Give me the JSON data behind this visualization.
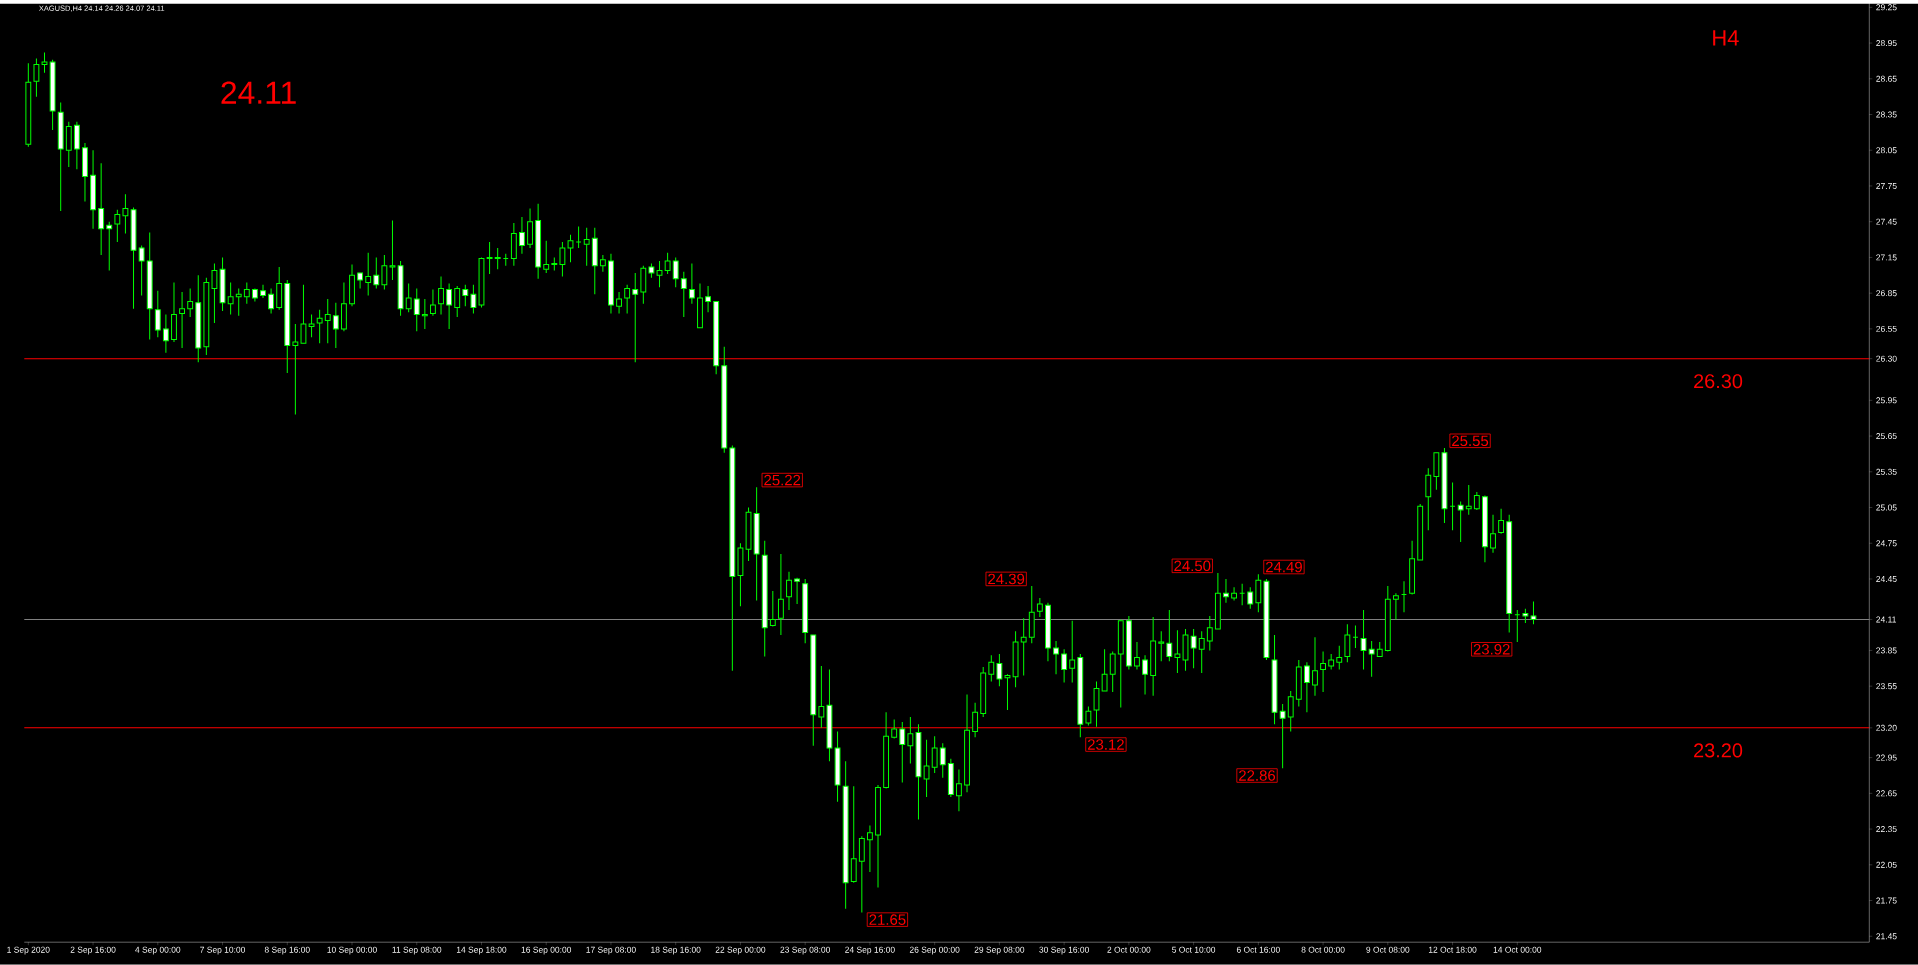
{
  "chart_data": {
    "type": "candlestick",
    "title": "XAGUSD,H4  24.14 24.26 24.07 24.11",
    "color": "#00ff00",
    "categories": [
      "1 Sep 2020",
      null,
      null,
      null,
      null,
      null,
      null,
      null,
      "2 Sep 16:00",
      null,
      null,
      null,
      null,
      null,
      null,
      null,
      "4 Sep 00:00",
      null,
      null,
      null,
      null,
      null,
      null,
      null,
      "7 Sep 10:00",
      null,
      null,
      null,
      null,
      null,
      null,
      null,
      "8 Sep 16:00",
      null,
      null,
      null,
      null,
      null,
      null,
      null,
      "10 Sep 00:00",
      null,
      null,
      null,
      null,
      null,
      null,
      null,
      "11 Sep 08:00",
      null,
      null,
      null,
      null,
      null,
      null,
      null,
      "14 Sep 18:00",
      null,
      null,
      null,
      null,
      null,
      null,
      null,
      "16 Sep 00:00",
      null,
      null,
      null,
      null,
      null,
      null,
      null,
      "17 Sep 08:00",
      null,
      null,
      null,
      null,
      null,
      null,
      null,
      "18 Sep 16:00",
      null,
      null,
      null,
      null,
      null,
      null,
      null,
      "22 Sep 00:00",
      null,
      null,
      null,
      null,
      null,
      null,
      null,
      "23 Sep 08:00",
      null,
      null,
      null,
      null,
      null,
      null,
      null,
      "24 Sep 16:00",
      null,
      null,
      null,
      null,
      null,
      null,
      null,
      "26 Sep 00:00",
      null,
      null,
      null,
      null,
      null,
      null,
      null,
      "29 Sep 08:00",
      null,
      null,
      null,
      null,
      null,
      null,
      null,
      "30 Sep 16:00",
      null,
      null,
      null,
      null,
      null,
      null,
      null,
      "2 Oct 00:00",
      null,
      null,
      null,
      null,
      null,
      null,
      null,
      "5 Oct 10:00",
      null,
      null,
      null,
      null,
      null,
      null,
      null,
      "6 Oct 16:00",
      null,
      null,
      null,
      null,
      null,
      null,
      null,
      "8 Oct 00:00",
      null,
      null,
      null,
      null,
      null,
      null,
      null,
      "9 Oct 08:00",
      null,
      null,
      null,
      null,
      null,
      null,
      null,
      "12 Oct 18:00",
      null,
      null,
      null,
      null,
      null,
      null,
      null,
      "14 Oct 00:00",
      null,
      null,
      null,
      null,
      null,
      null,
      null,
      null,
      null,
      null,
      null,
      null,
      null,
      null,
      null,
      null,
      null,
      null,
      null,
      null,
      null,
      null,
      null,
      null,
      null,
      null,
      null,
      null,
      null,
      null,
      null,
      null,
      null,
      null,
      null,
      null,
      null,
      null,
      null,
      null,
      null,
      null,
      null
    ],
    "ohlc": [
      [
        28.1,
        28.78,
        28.08,
        28.62
      ],
      [
        28.63,
        28.82,
        28.5,
        28.77
      ],
      [
        28.77,
        28.87,
        28.7,
        28.79
      ],
      [
        28.79,
        28.81,
        28.22,
        28.38
      ],
      [
        28.37,
        28.45,
        27.54,
        28.06
      ],
      [
        28.05,
        28.29,
        27.91,
        28.25
      ],
      [
        28.26,
        28.29,
        27.89,
        28.06
      ],
      [
        28.07,
        28.11,
        27.62,
        27.83
      ],
      [
        27.84,
        28.05,
        27.39,
        27.55
      ],
      [
        27.56,
        27.94,
        27.17,
        27.39
      ],
      [
        27.42,
        27.45,
        27.04,
        27.39
      ],
      [
        27.43,
        27.55,
        27.28,
        27.51
      ],
      [
        27.5,
        27.68,
        27.35,
        27.56
      ],
      [
        27.55,
        27.57,
        26.72,
        27.21
      ],
      [
        27.23,
        27.25,
        26.83,
        27.12
      ],
      [
        27.12,
        27.36,
        26.46,
        26.72
      ],
      [
        26.71,
        26.87,
        26.48,
        26.54
      ],
      [
        26.55,
        26.67,
        26.35,
        26.45
      ],
      [
        26.46,
        26.94,
        26.44,
        26.67
      ],
      [
        26.68,
        26.86,
        26.39,
        26.72
      ],
      [
        26.72,
        26.89,
        26.65,
        26.78
      ],
      [
        26.77,
        27.0,
        26.27,
        26.39
      ],
      [
        26.4,
        26.98,
        26.33,
        26.94
      ],
      [
        26.89,
        27.1,
        26.6,
        27.04
      ],
      [
        27.05,
        27.15,
        26.7,
        26.77
      ],
      [
        26.76,
        26.94,
        26.67,
        26.82
      ],
      [
        26.82,
        26.89,
        26.66,
        26.84
      ],
      [
        26.82,
        26.94,
        26.76,
        26.88
      ],
      [
        26.88,
        26.89,
        26.78,
        26.81
      ],
      [
        26.87,
        26.92,
        26.81,
        26.83
      ],
      [
        26.84,
        26.89,
        26.68,
        26.72
      ],
      [
        26.73,
        27.07,
        26.71,
        26.93
      ],
      [
        26.93,
        26.96,
        26.18,
        26.41
      ],
      [
        26.41,
        26.59,
        25.83,
        26.44
      ],
      [
        26.43,
        26.92,
        26.43,
        26.59
      ],
      [
        26.57,
        26.67,
        26.48,
        26.59
      ],
      [
        26.6,
        26.71,
        26.43,
        26.64
      ],
      [
        26.62,
        26.8,
        26.43,
        26.67
      ],
      [
        26.66,
        26.77,
        26.39,
        26.55
      ],
      [
        26.55,
        26.94,
        26.53,
        26.76
      ],
      [
        26.76,
        27.09,
        26.74,
        27.0
      ],
      [
        27.02,
        27.02,
        26.89,
        26.96
      ],
      [
        26.94,
        27.19,
        26.83,
        26.99
      ],
      [
        27.0,
        27.15,
        26.89,
        26.92
      ],
      [
        26.92,
        27.17,
        26.88,
        27.08
      ],
      [
        27.07,
        27.46,
        26.96,
        27.08
      ],
      [
        27.08,
        27.12,
        26.66,
        26.72
      ],
      [
        26.72,
        26.93,
        26.69,
        26.81
      ],
      [
        26.8,
        26.89,
        26.53,
        26.67
      ],
      [
        26.66,
        26.8,
        26.55,
        26.67
      ],
      [
        26.68,
        26.88,
        26.66,
        26.75
      ],
      [
        26.76,
        26.99,
        26.67,
        26.89
      ],
      [
        26.88,
        26.93,
        26.55,
        26.75
      ],
      [
        26.73,
        26.91,
        26.65,
        26.89
      ],
      [
        26.88,
        26.92,
        26.74,
        26.83
      ],
      [
        26.84,
        26.92,
        26.68,
        26.73
      ],
      [
        26.75,
        27.15,
        26.73,
        27.14
      ],
      [
        27.14,
        27.28,
        27.01,
        27.15
      ],
      [
        27.15,
        27.23,
        27.05,
        27.14
      ],
      [
        27.14,
        27.18,
        27.08,
        27.14
      ],
      [
        27.14,
        27.44,
        27.08,
        27.35
      ],
      [
        27.36,
        27.49,
        27.18,
        27.25
      ],
      [
        27.26,
        27.56,
        27.23,
        27.45
      ],
      [
        27.46,
        27.6,
        26.97,
        27.07
      ],
      [
        27.05,
        27.29,
        27.02,
        27.09
      ],
      [
        27.09,
        27.15,
        27.04,
        27.1
      ],
      [
        27.09,
        27.28,
        26.99,
        27.23
      ],
      [
        27.23,
        27.34,
        27.11,
        27.29
      ],
      [
        27.28,
        27.41,
        27.23,
        27.28
      ],
      [
        27.26,
        27.4,
        27.08,
        27.3
      ],
      [
        27.31,
        27.4,
        26.84,
        27.08
      ],
      [
        27.08,
        27.17,
        27.03,
        27.13
      ],
      [
        27.12,
        27.18,
        26.68,
        26.75
      ],
      [
        26.74,
        26.86,
        26.68,
        26.8
      ],
      [
        26.81,
        26.92,
        26.68,
        26.89
      ],
      [
        26.88,
        27.02,
        26.27,
        26.84
      ],
      [
        26.86,
        27.08,
        26.76,
        27.06
      ],
      [
        27.07,
        27.1,
        26.98,
        27.02
      ],
      [
        27.0,
        27.12,
        26.9,
        27.04
      ],
      [
        27.04,
        27.19,
        27.01,
        27.12
      ],
      [
        27.12,
        27.15,
        26.9,
        26.97
      ],
      [
        26.97,
        27.03,
        26.65,
        26.89
      ],
      [
        26.88,
        27.1,
        26.76,
        26.81
      ],
      [
        26.56,
        26.93,
        26.56,
        26.81
      ],
      [
        26.82,
        26.91,
        26.69,
        26.78
      ],
      [
        26.78,
        26.78,
        26.17,
        26.24
      ],
      [
        26.24,
        26.4,
        25.51,
        25.55
      ],
      [
        25.55,
        25.57,
        23.68,
        24.47
      ],
      [
        24.48,
        24.75,
        24.22,
        24.71
      ],
      [
        24.7,
        25.05,
        24.6,
        25.01
      ],
      [
        25.0,
        25.22,
        24.27,
        24.66
      ],
      [
        24.65,
        24.77,
        23.8,
        24.04
      ],
      [
        24.06,
        24.35,
        24.05,
        24.11
      ],
      [
        24.12,
        24.66,
        23.98,
        24.28
      ],
      [
        24.3,
        24.51,
        24.19,
        24.44
      ],
      [
        24.45,
        24.46,
        24.24,
        24.43
      ],
      [
        24.41,
        24.45,
        23.91,
        24.0
      ],
      [
        23.98,
        23.98,
        23.05,
        23.31
      ],
      [
        23.29,
        23.72,
        23.2,
        23.38
      ],
      [
        23.39,
        23.69,
        22.92,
        23.03
      ],
      [
        23.03,
        23.17,
        22.58,
        22.72
      ],
      [
        22.71,
        22.92,
        21.68,
        21.9
      ],
      [
        21.91,
        22.71,
        21.9,
        22.1
      ],
      [
        22.08,
        22.29,
        21.65,
        22.27
      ],
      [
        22.26,
        22.38,
        21.99,
        22.32
      ],
      [
        22.3,
        22.72,
        21.86,
        22.7
      ],
      [
        22.7,
        23.33,
        22.69,
        23.13
      ],
      [
        23.12,
        23.27,
        23.11,
        23.19
      ],
      [
        23.19,
        23.25,
        22.74,
        23.06
      ],
      [
        23.05,
        23.29,
        22.9,
        23.15
      ],
      [
        23.16,
        23.23,
        22.43,
        22.79
      ],
      [
        22.77,
        23.1,
        22.62,
        22.88
      ],
      [
        22.87,
        23.13,
        22.82,
        23.03
      ],
      [
        23.03,
        23.07,
        22.78,
        22.89
      ],
      [
        22.9,
        22.94,
        22.62,
        22.64
      ],
      [
        22.63,
        22.85,
        22.5,
        22.73
      ],
      [
        22.72,
        23.48,
        22.66,
        23.18
      ],
      [
        23.17,
        23.41,
        23.12,
        23.33
      ],
      [
        23.32,
        23.71,
        23.29,
        23.66
      ],
      [
        23.65,
        23.81,
        23.59,
        23.75
      ],
      [
        23.74,
        23.82,
        23.55,
        23.61
      ],
      [
        23.62,
        23.65,
        23.35,
        23.64
      ],
      [
        23.63,
        24.01,
        23.54,
        23.92
      ],
      [
        23.92,
        24.12,
        23.64,
        23.96
      ],
      [
        23.96,
        24.39,
        23.91,
        24.17
      ],
      [
        24.18,
        24.29,
        24.13,
        24.24
      ],
      [
        24.23,
        24.25,
        23.76,
        23.87
      ],
      [
        23.87,
        23.93,
        23.65,
        23.82
      ],
      [
        23.82,
        23.86,
        23.58,
        23.69
      ],
      [
        23.7,
        24.1,
        23.58,
        23.77
      ],
      [
        23.79,
        23.82,
        23.12,
        23.23
      ],
      [
        23.24,
        23.38,
        23.22,
        23.34
      ],
      [
        23.35,
        23.59,
        23.21,
        23.53
      ],
      [
        23.51,
        23.86,
        23.51,
        23.65
      ],
      [
        23.65,
        23.84,
        23.5,
        23.82
      ],
      [
        23.82,
        24.11,
        23.37,
        24.1
      ],
      [
        24.1,
        24.14,
        23.69,
        23.72
      ],
      [
        23.72,
        23.92,
        23.69,
        23.79
      ],
      [
        23.77,
        23.81,
        23.48,
        23.65
      ],
      [
        23.64,
        24.13,
        23.47,
        23.93
      ],
      [
        23.91,
        24.01,
        23.76,
        23.92
      ],
      [
        23.91,
        24.19,
        23.76,
        23.8
      ],
      [
        23.79,
        24.02,
        23.66,
        23.82
      ],
      [
        23.77,
        24.03,
        23.68,
        23.98
      ],
      [
        23.97,
        24.03,
        23.7,
        23.87
      ],
      [
        23.86,
        24.01,
        23.66,
        23.95
      ],
      [
        23.93,
        24.14,
        23.85,
        24.04
      ],
      [
        24.03,
        24.5,
        24.03,
        24.33
      ],
      [
        24.33,
        24.45,
        24.25,
        24.3
      ],
      [
        24.29,
        24.38,
        24.27,
        24.33
      ],
      [
        24.33,
        24.41,
        24.23,
        24.33
      ],
      [
        24.34,
        24.38,
        24.2,
        24.24
      ],
      [
        24.25,
        24.49,
        24.17,
        24.44
      ],
      [
        24.43,
        24.45,
        23.77,
        23.79
      ],
      [
        23.77,
        23.98,
        23.23,
        23.33
      ],
      [
        23.34,
        23.4,
        22.86,
        23.28
      ],
      [
        23.29,
        23.51,
        23.17,
        23.46
      ],
      [
        23.44,
        23.77,
        23.38,
        23.71
      ],
      [
        23.72,
        23.75,
        23.33,
        23.58
      ],
      [
        23.56,
        23.96,
        23.47,
        23.68
      ],
      [
        23.69,
        23.84,
        23.5,
        23.74
      ],
      [
        23.72,
        23.82,
        23.69,
        23.77
      ],
      [
        23.75,
        23.89,
        23.69,
        23.79
      ],
      [
        23.8,
        24.07,
        23.75,
        23.98
      ],
      [
        23.96,
        24.06,
        23.87,
        23.96
      ],
      [
        23.95,
        24.19,
        23.69,
        23.85
      ],
      [
        23.86,
        23.93,
        23.63,
        23.82
      ],
      [
        23.8,
        23.92,
        23.8,
        23.86
      ],
      [
        23.85,
        24.39,
        23.84,
        24.28
      ],
      [
        24.28,
        24.33,
        24.11,
        24.31
      ],
      [
        24.32,
        24.43,
        24.17,
        24.32
      ],
      [
        24.33,
        24.77,
        24.32,
        24.62
      ],
      [
        24.61,
        25.08,
        24.61,
        25.06
      ],
      [
        25.14,
        25.38,
        24.86,
        25.32
      ],
      [
        25.31,
        25.51,
        25.2,
        25.51
      ],
      [
        25.51,
        25.55,
        24.92,
        25.04
      ],
      [
        25.06,
        25.26,
        24.86,
        25.06
      ],
      [
        25.07,
        25.1,
        24.76,
        25.03
      ],
      [
        25.04,
        25.24,
        24.99,
        25.06
      ],
      [
        25.04,
        25.18,
        25.03,
        25.15
      ],
      [
        25.14,
        25.15,
        24.59,
        24.72
      ],
      [
        24.71,
        24.99,
        24.67,
        24.83
      ],
      [
        24.84,
        25.04,
        24.83,
        24.94
      ],
      [
        24.93,
        24.99,
        24.0,
        24.16
      ],
      [
        24.15,
        24.19,
        23.92,
        24.15
      ],
      [
        24.16,
        24.2,
        24.08,
        24.14
      ],
      [
        24.14,
        24.26,
        24.07,
        24.11
      ],
      null,
      null,
      null,
      null,
      null,
      null,
      null,
      null,
      null,
      null,
      null,
      null,
      null,
      null,
      null,
      null,
      null,
      null,
      null,
      null,
      null,
      null,
      null,
      null,
      null,
      null,
      null,
      null,
      null,
      null,
      null,
      null,
      null,
      null,
      null,
      null,
      null,
      null,
      null,
      null,
      null
    ],
    "ylim": [
      21.4,
      29.31
    ],
    "yticks": [
      29.25,
      28.95,
      28.65,
      28.35,
      28.05,
      27.75,
      27.45,
      27.15,
      26.85,
      26.55,
      {
        "value": 26.3,
        "label": "26.30"
      },
      25.95,
      25.65,
      25.35,
      25.05,
      24.75,
      24.45,
      {
        "value": 24.11,
        "label": "24.11"
      },
      23.85,
      23.55,
      {
        "value": 23.2,
        "label": "23.20"
      },
      22.95,
      22.65,
      22.35,
      22.05,
      21.75,
      21.45
    ],
    "ref_lines": [
      {
        "axis": "y",
        "value": 26.3,
        "label": "26.30",
        "color": "#ff0000"
      },
      {
        "axis": "y",
        "value": 24.11,
        "color": "#808080"
      },
      {
        "axis": "y",
        "value": 23.2,
        "label": "23.20",
        "color": "#ff0000"
      }
    ],
    "annotations": [
      "24.11",
      "H4",
      "25.22",
      "24.39",
      "24.50",
      "24.49",
      "25.55",
      "23.92",
      "23.12",
      "22.86",
      "21.65"
    ],
    "grid": false
  }
}
